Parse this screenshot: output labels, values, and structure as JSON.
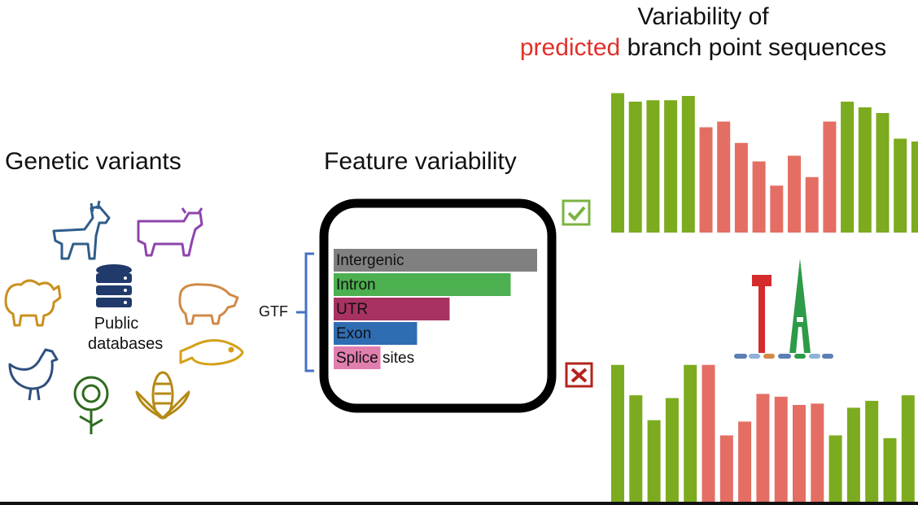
{
  "left": {
    "heading": "Genetic variants",
    "database_label_line1": "Public",
    "database_label_line2": "databases",
    "organisms": [
      "goat-icon",
      "cow-icon",
      "sheep-icon",
      "pig-icon",
      "chicken-icon",
      "fish-icon",
      "sunflower-icon",
      "corn-icon",
      "database-icon"
    ]
  },
  "middle": {
    "heading": "Feature variability",
    "bracket_label": "GTF",
    "chart_data": {
      "type": "bar",
      "orientation": "horizontal",
      "categories": [
        "Intergenic",
        "Intron",
        "UTR",
        "Exon",
        "Splice sites"
      ],
      "values": [
        1.0,
        0.87,
        0.57,
        0.41,
        0.23
      ],
      "colors": [
        "#808080",
        "#4caf50",
        "#a83262",
        "#2f6db3",
        "#e07fae"
      ]
    }
  },
  "right": {
    "title_line1": "Variability of",
    "title_accent": "predicted",
    "title_rest": " branch point sequences",
    "accepted_icon": "checkbox-check-icon",
    "rejected_icon": "checkbox-cross-icon",
    "colors": {
      "conserved": "#7cab1f",
      "variable": "#e46e63",
      "check": "#7cb342",
      "cross": "#b3231e"
    },
    "top_chart": {
      "type": "bar",
      "values": [
        0.98,
        0.92,
        0.93,
        0.93,
        0.96,
        0.74,
        0.78,
        0.63,
        0.5,
        0.33,
        0.54,
        0.39,
        0.78,
        0.92,
        0.88,
        0.84,
        0.66,
        0.64
      ],
      "kind": [
        "c",
        "c",
        "c",
        "c",
        "c",
        "v",
        "v",
        "v",
        "v",
        "v",
        "v",
        "v",
        "v",
        "c",
        "c",
        "c",
        "c",
        "c"
      ]
    },
    "bottom_chart": {
      "type": "bar",
      "values": [
        0.99,
        0.77,
        0.59,
        0.75,
        0.99,
        0.99,
        0.48,
        0.58,
        0.78,
        0.76,
        0.7,
        0.71,
        0.48,
        0.68,
        0.73,
        0.46,
        0.77
      ],
      "kind": [
        "c",
        "c",
        "c",
        "c",
        "c",
        "v",
        "v",
        "v",
        "v",
        "v",
        "v",
        "v",
        "c",
        "c",
        "c",
        "c",
        "c"
      ]
    },
    "logo_letters": [
      "T",
      "A"
    ]
  }
}
